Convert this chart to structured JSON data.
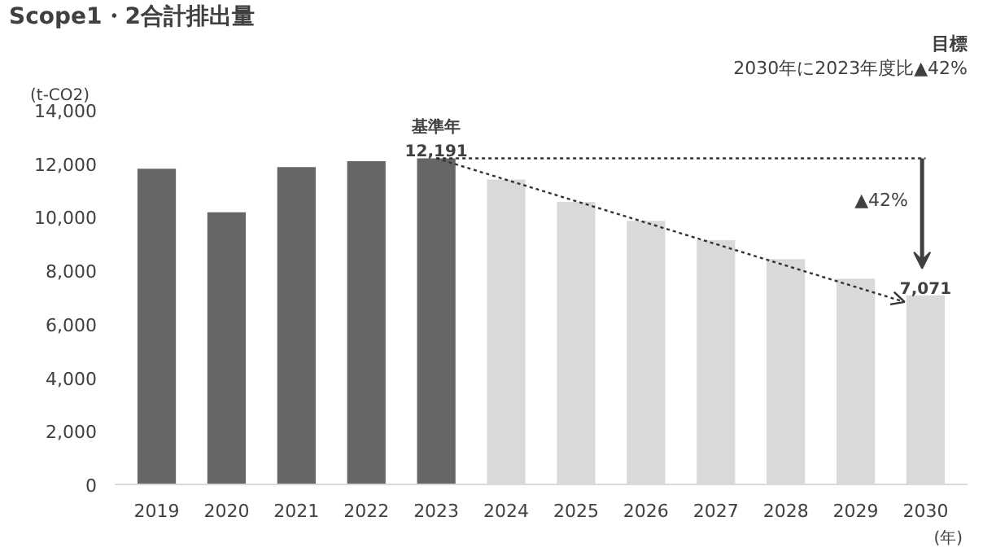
{
  "chart_data": {
    "type": "bar",
    "title": "Scope1・2合計排出量",
    "xlabel": "(年)",
    "ylabel": "(t-CO2)",
    "categories": [
      "2019",
      "2020",
      "2021",
      "2022",
      "2023",
      "2024",
      "2025",
      "2026",
      "2027",
      "2028",
      "2029",
      "2030"
    ],
    "values": [
      11800,
      10170,
      11860,
      12080,
      12191,
      11400,
      10560,
      9850,
      9130,
      8420,
      7690,
      7071
    ],
    "colors": [
      "#666666",
      "#666666",
      "#666666",
      "#666666",
      "#666666",
      "#d9d9d9",
      "#d9d9d9",
      "#d9d9d9",
      "#d9d9d9",
      "#d9d9d9",
      "#d9d9d9",
      "#d9d9d9"
    ],
    "ylim": [
      0,
      14000
    ],
    "yticks": [
      0,
      {
        "value": 2000,
        "label": "2,000"
      },
      {
        "value": 4000,
        "label": "4,000"
      },
      {
        "value": 6000,
        "label": "6,000"
      },
      {
        "value": 8000,
        "label": "8,000"
      },
      {
        "value": 10000,
        "label": "10,000"
      },
      {
        "value": 12000,
        "label": "12,000"
      },
      {
        "value": 14000,
        "label": "14,000"
      }
    ],
    "annotations": [
      {
        "text": "基準年",
        "x": "2023",
        "y": 12191
      },
      {
        "text": "12,191",
        "x": "2023",
        "y": 12191
      },
      {
        "text": "7,071",
        "x": "2030",
        "y": 7071
      },
      "目標",
      "2030年に2023年度比▲42%",
      "▲42%"
    ]
  }
}
